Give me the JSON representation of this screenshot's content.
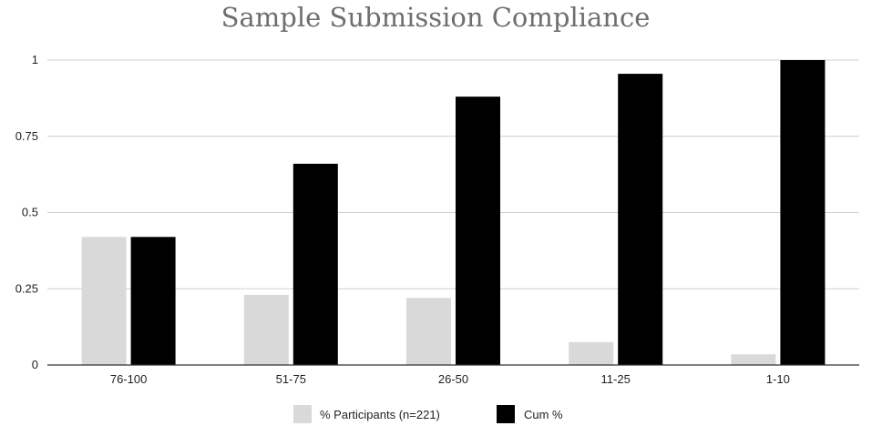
{
  "chart_data": {
    "type": "bar",
    "title": "Sample Submission Compliance",
    "xlabel": "",
    "ylabel": "",
    "categories": [
      "76-100",
      "51-75",
      "26-50",
      "11-25",
      "1-10"
    ],
    "series": [
      {
        "name": "% Participants (n=221)",
        "color": "#d9d9d9",
        "values": [
          0.42,
          0.23,
          0.22,
          0.075,
          0.035
        ]
      },
      {
        "name": "Cum %",
        "color": "#000000",
        "values": [
          0.42,
          0.66,
          0.88,
          0.955,
          1.0
        ]
      }
    ],
    "ylim": [
      0,
      1
    ],
    "yticks": [
      0,
      0.25,
      0.5,
      0.75,
      1
    ],
    "ytick_labels": [
      "0",
      "0.25",
      "0.5",
      "0.75",
      "1"
    ],
    "grid": true,
    "legend_position": "bottom"
  }
}
